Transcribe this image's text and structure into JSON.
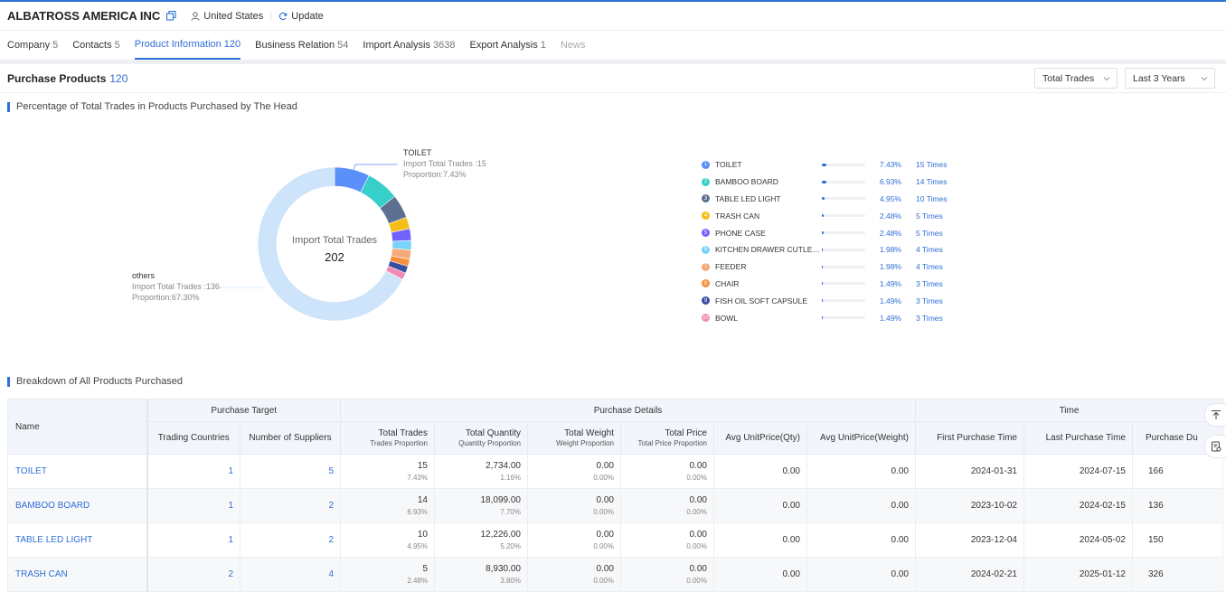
{
  "header": {
    "company": "ALBATROSS AMERICA INC",
    "country": "United States",
    "update": "Update"
  },
  "tabs": [
    {
      "label": "Company",
      "count": "5"
    },
    {
      "label": "Contacts",
      "count": "5"
    },
    {
      "label": "Product Information",
      "count": "120"
    },
    {
      "label": "Business Relation",
      "count": "54"
    },
    {
      "label": "Import Analysis",
      "count": "3638"
    },
    {
      "label": "Export Analysis",
      "count": "1"
    },
    {
      "label": "News",
      "count": ""
    }
  ],
  "section": {
    "title": "Purchase Products",
    "count": "120"
  },
  "filters": {
    "metric": "Total Trades",
    "range": "Last 3 Years"
  },
  "pie_title": "Percentage of Total Trades in Products Purchased by The Head",
  "donut": {
    "center_label": "Import Total Trades",
    "center_value": "202",
    "callout_top": {
      "name": "TOILET",
      "line1": "Import Total Trades :15",
      "line2": "Proportion:7.43%"
    },
    "callout_left": {
      "name": "others",
      "line1": "Import Total Trades :136",
      "line2": "Proportion:67.30%"
    }
  },
  "chart_data": {
    "type": "pie",
    "total": 202,
    "slices": [
      {
        "name": "TOILET",
        "value": 15,
        "pct": 7.43,
        "color": "#5b8ff9"
      },
      {
        "name": "BAMBOO BOARD",
        "value": 14,
        "pct": 6.93,
        "color": "#36cfc9"
      },
      {
        "name": "TABLE LED LIGHT",
        "value": 10,
        "pct": 4.95,
        "color": "#5d7092"
      },
      {
        "name": "TRASH CAN",
        "value": 5,
        "pct": 2.48,
        "color": "#f6bd16"
      },
      {
        "name": "PHONE CASE",
        "value": 5,
        "pct": 2.48,
        "color": "#7262fd"
      },
      {
        "name": "KITCHEN DRAWER CUTLERY ...",
        "value": 4,
        "pct": 1.98,
        "color": "#78d3f8"
      },
      {
        "name": "FEEDER",
        "value": 4,
        "pct": 1.98,
        "color": "#f6a97a"
      },
      {
        "name": "CHAIR",
        "value": 3,
        "pct": 1.49,
        "color": "#f6903d"
      },
      {
        "name": "FISH OIL SOFT CAPSULE",
        "value": 3,
        "pct": 1.49,
        "color": "#3a4ea0"
      },
      {
        "name": "BOWL",
        "value": 3,
        "pct": 1.49,
        "color": "#f08bb4"
      },
      {
        "name": "others",
        "value": 136,
        "pct": 67.3,
        "color": "#cde4fa"
      }
    ]
  },
  "legend": [
    {
      "num": "1",
      "name": "TOILET",
      "pct": "7.43%",
      "times": "15  Times",
      "color": "#5b8ff9",
      "fill": 0.0743
    },
    {
      "num": "2",
      "name": "BAMBOO BOARD",
      "pct": "6.93%",
      "times": "14  Times",
      "color": "#36cfc9",
      "fill": 0.0693
    },
    {
      "num": "3",
      "name": "TABLE LED LIGHT",
      "pct": "4.95%",
      "times": "10  Times",
      "color": "#5d7092",
      "fill": 0.0495
    },
    {
      "num": "4",
      "name": "TRASH CAN",
      "pct": "2.48%",
      "times": "5  Times",
      "color": "#f6bd16",
      "fill": 0.0248
    },
    {
      "num": "5",
      "name": "PHONE CASE",
      "pct": "2.48%",
      "times": "5  Times",
      "color": "#7262fd",
      "fill": 0.0248
    },
    {
      "num": "6",
      "name": "KITCHEN DRAWER CUTLERY ...",
      "pct": "1.98%",
      "times": "4  Times",
      "color": "#78d3f8",
      "fill": 0.0198
    },
    {
      "num": "7",
      "name": "FEEDER",
      "pct": "1.98%",
      "times": "4  Times",
      "color": "#f6a97a",
      "fill": 0.0198
    },
    {
      "num": "8",
      "name": "CHAIR",
      "pct": "1.49%",
      "times": "3  Times",
      "color": "#f6903d",
      "fill": 0.0149
    },
    {
      "num": "9",
      "name": "FISH OIL SOFT CAPSULE",
      "pct": "1.49%",
      "times": "3  Times",
      "color": "#3a4ea0",
      "fill": 0.0149
    },
    {
      "num": "10",
      "name": "BOWL",
      "pct": "1.49%",
      "times": "3  Times",
      "color": "#f08bb4",
      "fill": 0.0149
    }
  ],
  "breakdown_title": "Breakdown of All Products Purchased",
  "table": {
    "groups": {
      "name": "Name",
      "target": "Purchase Target",
      "details": "Purchase Details",
      "time": "Time"
    },
    "cols": {
      "countries": "Trading Countries",
      "suppliers": "Number of Suppliers",
      "trades": "Total Trades",
      "trades_sub": "Trades Proportion",
      "qty": "Total Quantity",
      "qty_sub": "Quantity Proportion",
      "weight": "Total Weight",
      "weight_sub": "Weight Proportion",
      "price": "Total Price",
      "price_sub": "Total Price Proportion",
      "avg_qty": "Avg UnitPrice(Qty)",
      "avg_weight": "Avg UnitPrice(Weight)",
      "first": "First Purchase Time",
      "last": "Last Purchase Time",
      "duration": "Purchase Du"
    },
    "rows": [
      {
        "name": "TOILET",
        "countries": "1",
        "suppliers": "5",
        "trades": "15",
        "trades_p": "7.43%",
        "qty": "2,734.00",
        "qty_p": "1.16%",
        "weight": "0.00",
        "weight_p": "0.00%",
        "price": "0.00",
        "price_p": "0.00%",
        "avg_qty": "0.00",
        "avg_weight": "0.00",
        "first": "2024-01-31",
        "last": "2024-07-15",
        "duration": "166"
      },
      {
        "name": "BAMBOO BOARD",
        "countries": "1",
        "suppliers": "2",
        "trades": "14",
        "trades_p": "6.93%",
        "qty": "18,099.00",
        "qty_p": "7.70%",
        "weight": "0.00",
        "weight_p": "0.00%",
        "price": "0.00",
        "price_p": "0.00%",
        "avg_qty": "0.00",
        "avg_weight": "0.00",
        "first": "2023-10-02",
        "last": "2024-02-15",
        "duration": "136"
      },
      {
        "name": "TABLE LED LIGHT",
        "countries": "1",
        "suppliers": "2",
        "trades": "10",
        "trades_p": "4.95%",
        "qty": "12,226.00",
        "qty_p": "5.20%",
        "weight": "0.00",
        "weight_p": "0.00%",
        "price": "0.00",
        "price_p": "0.00%",
        "avg_qty": "0.00",
        "avg_weight": "0.00",
        "first": "2023-12-04",
        "last": "2024-05-02",
        "duration": "150"
      },
      {
        "name": "TRASH CAN",
        "countries": "2",
        "suppliers": "4",
        "trades": "5",
        "trades_p": "2.48%",
        "qty": "8,930.00",
        "qty_p": "3.80%",
        "weight": "0.00",
        "weight_p": "0.00%",
        "price": "0.00",
        "price_p": "0.00%",
        "avg_qty": "0.00",
        "avg_weight": "0.00",
        "first": "2024-02-21",
        "last": "2025-01-12",
        "duration": "326"
      }
    ]
  }
}
